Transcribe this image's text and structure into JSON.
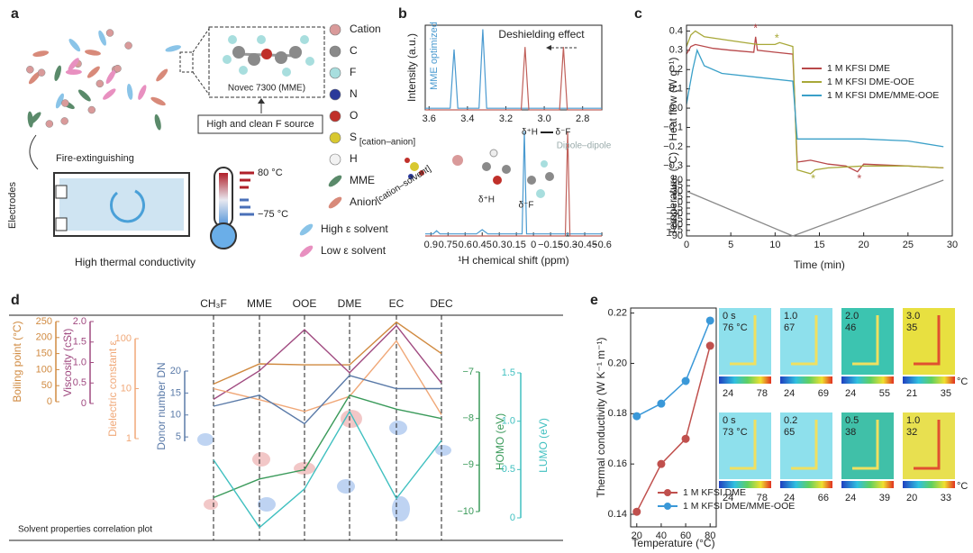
{
  "panel_labels": {
    "a": "a",
    "b": "b",
    "c": "c",
    "d": "d",
    "e": "e"
  },
  "diagram_a": {
    "molecule": "Novec 7300 (MME)",
    "source": "High and clean F source",
    "fire": "Fire-extinguishing",
    "electrodes": "Electrodes",
    "temp_high": "80 °C",
    "temp_low": "−75 °C",
    "conductivity": "High thermal conductivity",
    "legend": [
      {
        "label": "Cation",
        "color": "#d99a9a"
      },
      {
        "label": "C",
        "color": "#8a8a8a"
      },
      {
        "label": "F",
        "color": "#a8dede"
      },
      {
        "label": "N",
        "color": "#2a3a9a"
      },
      {
        "label": "O",
        "color": "#c0302a"
      },
      {
        "label": "S",
        "color": "#d8c830"
      },
      {
        "label": "H",
        "color": "#f2f2f2"
      },
      {
        "label": "MME",
        "color": "#5a8a6a"
      },
      {
        "label": "Anion",
        "color": "#d88a7a"
      },
      {
        "label": "High ε solvent",
        "color": "#8ac4e8"
      },
      {
        "label": "Low ε solvent",
        "color": "#e890c0"
      }
    ]
  },
  "chart_data": [
    {
      "type": "line",
      "ylabel": "Intensity (a.u.)",
      "annotations": [
        "MME optimized",
        "Deshielding effect"
      ],
      "xlim": [
        3.62,
        2.7
      ],
      "xticks": [
        3.6,
        3.4,
        3.2,
        {
          "value": 3.0,
          "label": "3.0"
        },
        2.8
      ],
      "ylim": [
        0,
        1.05
      ],
      "series": [
        {
          "color": "#4a9ad0",
          "x": [
            3.62,
            3.49,
            3.47,
            3.45,
            3.34,
            3.32,
            3.3,
            2.7
          ],
          "values": [
            0.02,
            0.02,
            0.75,
            0.02,
            0.02,
            1,
            0.02,
            0.02
          ]
        },
        {
          "color": "#c0605a",
          "x": [
            3.62,
            3.12,
            3.1,
            3.08,
            2.92,
            2.9,
            2.88,
            2.7
          ],
          "values": [
            0,
            0,
            0.78,
            0,
            0,
            0.78,
            0,
            0
          ]
        }
      ]
    },
    {
      "type": "line",
      "xlabel": "¹H chemical shift (ppm)",
      "annotations": [
        "[cation–anion]",
        "[cation–solvent]",
        "δ⁺H",
        "δ⁻F",
        "δ⁺H",
        "δ⁻F",
        "Dipole–dipole"
      ],
      "xlim": [
        0.95,
        -0.6
      ],
      "xticks": [
        0.9,
        0.75,
        0.6,
        0.45,
        0.3,
        0.15,
        0,
        {
          "value": -0.15,
          "label": "−0.15"
        },
        {
          "value": -0.3,
          "label": "−0.3"
        },
        {
          "value": -0.45,
          "label": "−0.45"
        },
        {
          "value": -0.6,
          "label": "−0.6"
        }
      ],
      "ylim": [
        0,
        1.05
      ],
      "series": [
        {
          "color": "#4a9ad0",
          "x": [
            0.95,
            0.88,
            0.85,
            0.82,
            0.5,
            0.45,
            0.4,
            0.1,
            0.08,
            0.06,
            -0.6
          ],
          "values": [
            0.02,
            0.02,
            0.05,
            0.02,
            0.02,
            0.06,
            0.02,
            0.02,
            1,
            0.02,
            0.02
          ]
        },
        {
          "color": "#c0605a",
          "x": [
            0.95,
            -0.28,
            -0.3,
            -0.32,
            -0.6
          ],
          "values": [
            0,
            0,
            1,
            0,
            0
          ]
        }
      ]
    },
    {
      "type": "line",
      "ylabel": "Heat flow (W g⁻¹)",
      "annotations": [
        "*",
        "*",
        "*",
        "*"
      ],
      "legend": "upper right",
      "xlim": [
        0,
        30
      ],
      "ylim": [
        -0.35,
        0.43
      ],
      "yticks": [
        0.4,
        0.3,
        0.2,
        0.1,
        {
          "value": 0.0,
          "label": "0.0"
        },
        {
          "value": -0.1,
          "label": "−0.1"
        },
        {
          "value": -0.2,
          "label": "−0.2"
        },
        {
          "value": -0.3,
          "label": "−0.3"
        }
      ],
      "series": [
        {
          "name": "1 M KFSI DME",
          "color": "#b8484a",
          "x": [
            0,
            0.5,
            1,
            3,
            5,
            7.6,
            7.8,
            8,
            10,
            12,
            12.5,
            14,
            16,
            18,
            19.3,
            20,
            25,
            29
          ],
          "values": [
            0.28,
            0.32,
            0.33,
            0.31,
            0.3,
            0.29,
            0.37,
            0.3,
            0.29,
            0.28,
            -0.28,
            -0.27,
            -0.29,
            -0.3,
            -0.33,
            -0.29,
            -0.3,
            -0.31
          ]
        },
        {
          "name": "1 M KFSI DME-OOE",
          "color": "#a8a838",
          "x": [
            0,
            0.5,
            1,
            2,
            5,
            8,
            10,
            10.5,
            12,
            12.5,
            14,
            14.5,
            16,
            20,
            25,
            29
          ],
          "values": [
            0.32,
            0.38,
            0.4,
            0.37,
            0.35,
            0.33,
            0.33,
            0.34,
            0.32,
            -0.32,
            -0.34,
            -0.32,
            -0.31,
            -0.3,
            -0.3,
            -0.31
          ]
        },
        {
          "name": "1 M KFSI DME/MME-OOE",
          "color": "#3aa0c8",
          "x": [
            0,
            0.3,
            0.7,
            1.2,
            2,
            4,
            8,
            12,
            12.5,
            15,
            20,
            25,
            29
          ],
          "values": [
            0.02,
            0.1,
            0.2,
            0.3,
            0.22,
            0.18,
            0.16,
            0.14,
            -0.16,
            -0.16,
            -0.16,
            -0.17,
            -0.2
          ]
        }
      ]
    },
    {
      "type": "line",
      "ylabel": "Temperature (°C)",
      "xlabel": "Time (min)",
      "xlim": [
        0,
        30
      ],
      "xticks": [
        0,
        5,
        10,
        15,
        20,
        25,
        30
      ],
      "ylim": [
        -90,
        60
      ],
      "yticks": [
        60,
        45,
        30,
        15,
        0,
        {
          "value": -15,
          "label": "−15"
        },
        {
          "value": -30,
          "label": "−30"
        },
        {
          "value": -45,
          "label": "−45"
        },
        {
          "value": -60,
          "label": "−60"
        },
        {
          "value": -75,
          "label": "−75"
        },
        {
          "value": -90,
          "label": "−90"
        }
      ],
      "series": [
        {
          "color": "#8a8a8a",
          "x": [
            0,
            12,
            29
          ],
          "values": [
            30,
            -90,
            60
          ]
        }
      ]
    },
    {
      "type": "parallel",
      "title": "Solvent properties correlation plot",
      "categories": [
        "CH₃F",
        "MME",
        "OOE",
        "DME",
        "EC",
        "DEC"
      ],
      "axes": [
        {
          "label": "Boiling point (°C)",
          "color": "#d08a40",
          "lim": [
            0,
            250
          ],
          "ticks": [
            0,
            50,
            100,
            150,
            200,
            250
          ]
        },
        {
          "label": "Viscosity (cSt)",
          "color": "#a04a80",
          "lim": [
            0,
            2
          ],
          "ticks": [
            0,
            0.5,
            {
              "value": 1.0,
              "label": "1.0"
            },
            1.5,
            {
              "value": 2.0,
              "label": "2.0"
            }
          ]
        },
        {
          "label": "Dielectric constant ε",
          "color": "#f0a878",
          "lim": [
            1,
            100
          ],
          "log": true,
          "ticks": [
            1,
            10,
            100
          ]
        },
        {
          "label": "Donor number DN",
          "color": "#5a7aa8",
          "lim": [
            4,
            20
          ],
          "ticks": [
            5,
            10,
            15,
            20
          ]
        },
        {
          "label": "HOMO (eV)",
          "color": "#3a9a5a",
          "lim": [
            -10,
            -7
          ],
          "ticks": [
            {
              "value": -7,
              "label": "−7"
            },
            {
              "value": -8,
              "label": "−8"
            },
            {
              "value": -9,
              "label": "−9"
            },
            {
              "value": -10,
              "label": "−10"
            }
          ]
        },
        {
          "label": "LUMO (eV)",
          "color": "#40c0c0",
          "lim": [
            0,
            1.5
          ],
          "ticks": [
            0,
            0.5,
            {
              "value": 1.0,
              "label": "1.0"
            },
            1.5
          ]
        }
      ],
      "series": [
        {
          "axis": 0,
          "color": "#d08a40",
          "values": [
            55,
            118,
            115,
            115,
            248,
            150
          ]
        },
        {
          "axis": 1,
          "color": "#a04a80",
          "values": [
            0.1,
            0.8,
            1.8,
            0.75,
            1.9,
            0.5
          ]
        },
        {
          "axis": 2,
          "color": "#f0a878",
          "values": [
            10,
            6,
            3.5,
            7,
            90,
            3
          ]
        },
        {
          "axis": 3,
          "color": "#5a7aa8",
          "values": [
            12,
            14.5,
            8,
            19,
            16,
            16
          ]
        },
        {
          "axis": 4,
          "color": "#3a9a5a",
          "values": [
            -9.7,
            -9.3,
            -9.1,
            -7.5,
            -7.8,
            -8.0
          ]
        },
        {
          "axis": 5,
          "color": "#40c0c0",
          "values": [
            0.6,
            -0.1,
            0.3,
            1.1,
            0.2,
            0.8
          ]
        }
      ]
    },
    {
      "type": "line",
      "xlabel": "Temperature (°C)",
      "ylabel": "Thermal conductivity (W K⁻¹ m⁻¹)",
      "legend": "lower left",
      "x": [
        20,
        40,
        60,
        80
      ],
      "xlim": [
        15,
        85
      ],
      "xticks": [
        20,
        40,
        60,
        80
      ],
      "ylim": [
        0.135,
        0.222
      ],
      "yticks": [
        0.14,
        0.16,
        0.18,
        {
          "value": 0.2,
          "label": "0.20"
        },
        0.22
      ],
      "series": [
        {
          "name": "1 M KFSI DME",
          "color": "#c0504d",
          "values": [
            0.141,
            0.16,
            0.17,
            0.207
          ]
        },
        {
          "name": "1 M KFSI DME/MME-OOE",
          "color": "#3a98d8",
          "values": [
            0.179,
            0.184,
            0.193,
            0.217
          ]
        }
      ]
    }
  ],
  "thermal_images": {
    "unit": "°C",
    "rows": [
      [
        {
          "time": "0 s",
          "temp": "76 °C",
          "min": "24",
          "max": "78"
        },
        {
          "time": "1.0",
          "temp": "67",
          "min": "24",
          "max": "69"
        },
        {
          "time": "2.0",
          "temp": "46",
          "min": "24",
          "max": "55"
        },
        {
          "time": "3.0",
          "temp": "35",
          "min": "21",
          "max": "35"
        }
      ],
      [
        {
          "time": "0 s",
          "temp": "73 °C",
          "min": "24",
          "max": "78"
        },
        {
          "time": "0.2",
          "temp": "65",
          "min": "24",
          "max": "66"
        },
        {
          "time": "0.5",
          "temp": "38",
          "min": "24",
          "max": "39"
        },
        {
          "time": "1.0",
          "temp": "32",
          "min": "20",
          "max": "33"
        }
      ]
    ]
  }
}
